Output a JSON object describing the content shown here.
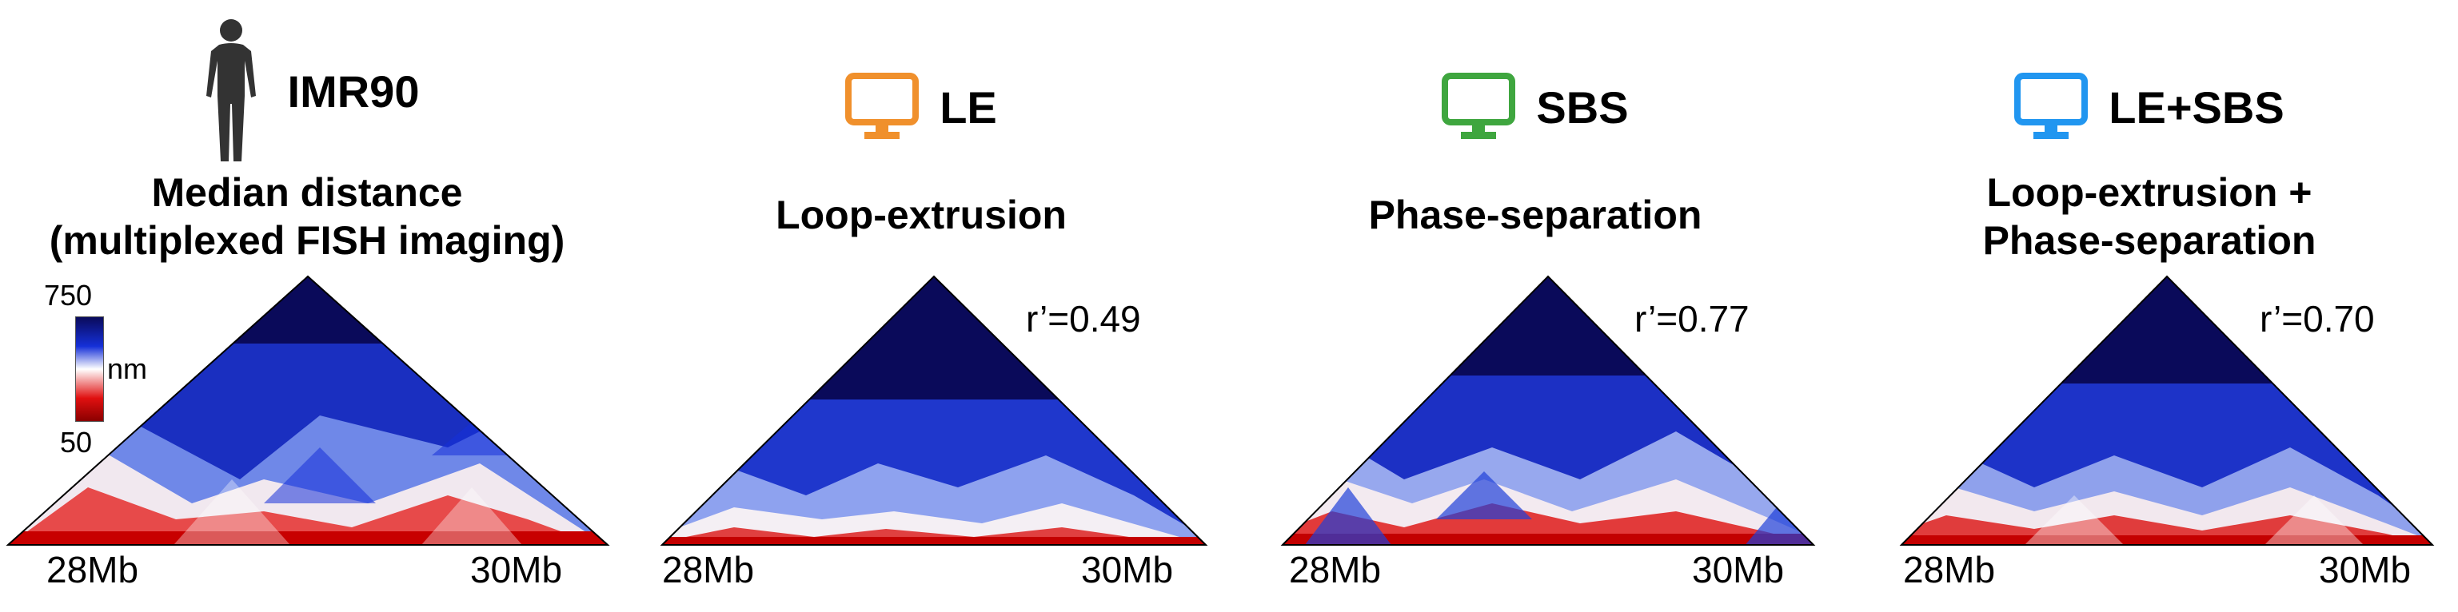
{
  "panels": [
    {
      "id": "imr90",
      "icon": "human-figure-icon",
      "title": "IMR90",
      "subtitle_lines": [
        "Median distance",
        "(multiplexed FISH imaging)"
      ],
      "correlation": "",
      "x_tick_left": "28Mb",
      "x_tick_right": "30Mb"
    },
    {
      "id": "le",
      "icon": "computer-monitor-icon",
      "icon_color": "#f0902c",
      "title": "LE",
      "subtitle_lines": [
        "Loop-extrusion"
      ],
      "correlation": "r’=0.49",
      "x_tick_left": "28Mb",
      "x_tick_right": "30Mb"
    },
    {
      "id": "sbs",
      "icon": "computer-monitor-icon",
      "icon_color": "#3fa63f",
      "title": "SBS",
      "subtitle_lines": [
        "Phase-separation"
      ],
      "correlation": "r’=0.77",
      "x_tick_left": "28Mb",
      "x_tick_right": "30Mb"
    },
    {
      "id": "le-sbs",
      "icon": "computer-monitor-icon",
      "icon_color": "#2196f0",
      "title": "LE+SBS",
      "subtitle_lines": [
        "Loop-extrusion +",
        "Phase-separation"
      ],
      "correlation": "r’=0.70",
      "x_tick_left": "28Mb",
      "x_tick_right": "30Mb"
    }
  ],
  "colorbar": {
    "max_label": "750",
    "min_label": "50",
    "unit": "nm",
    "colors": [
      "#0a0a5a",
      "#1530d8",
      "#ffffff",
      "#e01010",
      "#8a0000"
    ]
  }
}
